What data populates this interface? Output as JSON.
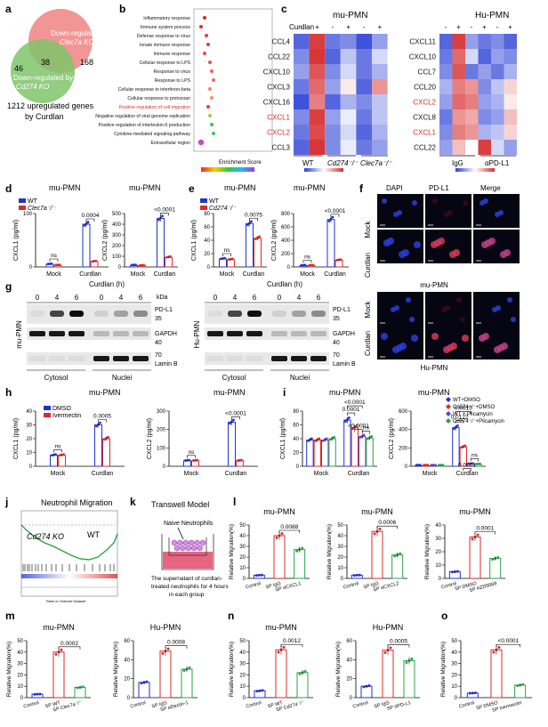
{
  "panels": {
    "a": {
      "letter": "a",
      "down_clec": "Down-regulated by",
      "clec_ko": "Clec7a KO",
      "down_cd": "Down-regulated by",
      "cd_ko": "Cd274 KO",
      "n_left": "46",
      "n_mid": "38",
      "n_right": "168",
      "upreg": "1212 upregulated genes",
      "by": "by Curdlan"
    },
    "b": {
      "letter": "b",
      "terms": [
        "Inflammatory response",
        "Immune system process",
        "Defense response to virus",
        "Innate immune response",
        "Immune response",
        "Cellular response to LPS",
        "Response to virus",
        "Response to LPS",
        "Cellular response to interferon-beta",
        "Cellular response to protozoan",
        "Positive regulation of cell migration",
        "Negative regulation of viral genome replication",
        "Positive regulation of interleukin-6 production",
        "Cytokine-mediated signaling pathway",
        "Extracellular region"
      ],
      "xlabel": "Enrichment Score"
    },
    "c": {
      "letter": "c",
      "mu_title": "mu-PMN",
      "hu_title": "Hu-PMN",
      "curdlan": "Curdlan",
      "signs": [
        "-",
        "+",
        "-",
        "+",
        "-",
        "+"
      ],
      "mu_genes": [
        "CCL4",
        "CCL22",
        "CXCL10",
        "CXCL3",
        "CXCL16",
        "CXCL1",
        "CXCL2",
        "CCL3"
      ],
      "hu_genes": [
        "CXCL11",
        "CXCL10",
        "CCL7",
        "CCL20",
        "CXCL2",
        "CXCL8",
        "CXCL1",
        "CCL22"
      ],
      "mu_groups": [
        "WT",
        "Cd274⁻/⁻",
        "Clec7a⁻/⁻"
      ],
      "hu_groups": [
        "IgG",
        "αPD-L1"
      ]
    },
    "d": {
      "letter": "d",
      "title1": "mu-PMN",
      "title2": "mu-PMN",
      "leg1": "WT",
      "leg2": "Clec7a⁻/⁻",
      "y1": "CXCL1 (pg/ml)",
      "y2": "CXCL2 (pg/ml)",
      "p1": "0.0004",
      "p2": "<0.0001",
      "ns": "ns",
      "mock": "Mock",
      "curd": "Curdlan"
    },
    "e": {
      "letter": "e",
      "title1": "mu-PMN",
      "title2": "mu-PMN",
      "leg1": "WT",
      "leg2": "Cd274⁻/⁻",
      "y1": "CXCL1 (pg/ml)",
      "y2": "CXCL2 (pg/ml)",
      "p1": "0.0075",
      "p2": "<0.0001",
      "ns": "ns",
      "mock": "Mock",
      "curd": "Curdlan"
    },
    "f": {
      "letter": "f",
      "cols": [
        "DAPI",
        "PD-L1",
        "Merge"
      ],
      "rows": [
        "Mock",
        "Curdlan"
      ],
      "mid": "mu-PMN",
      "bottom": "Hu-PMN"
    },
    "g": {
      "letter": "g",
      "curd_h": "Curdlan (h)",
      "times": [
        "0",
        "4",
        "6",
        "0",
        "4",
        "6"
      ],
      "kda": "kDa",
      "pdl1": "PD-L1",
      "gapdh": "GAPDH",
      "laminb": "Lamin B",
      "m35": "35",
      "m40": "40",
      "m70": "70",
      "cyto": "Cytosol",
      "nuc": "Nuclei",
      "mu": "mu-PMN",
      "hu": "Hu-PMN"
    },
    "h": {
      "letter": "h",
      "title1": "mu-PMN",
      "title2": "mu-PMN",
      "leg1": "DMSO",
      "leg2": "Ivermectin",
      "y1": "CXCL1 (pg/ml)",
      "y2": "CXCL2 (pg/ml)",
      "p1": "0.0005",
      "p2": "<0.0001",
      "ns": "ns",
      "mock": "Mock",
      "curd": "Curdlan"
    },
    "i": {
      "letter": "i",
      "title1": "mu-PMN",
      "title2": "mu-PMN",
      "legend": [
        "WT+DMSO",
        "Cd274⁻/⁻+DMSO",
        "WT + Plicamycin",
        "Cd274⁻/⁻+Plicamycin"
      ],
      "y1": "CXCL1 (pg/ml)",
      "y2": "CXCL2 (pg/ml)",
      "p1": [
        "<0.0001",
        "0.0001",
        "<0.0001"
      ],
      "p2": [
        "0.0015",
        "0.0122",
        "0.0001"
      ],
      "ns": "ns",
      "mock": "Mock",
      "curd": "Curdlan"
    },
    "j": {
      "letter": "j",
      "title": "Neutrophil Migration",
      "ko": "Cd274 KO",
      "wt": "WT",
      "xlabel": "Rank in Ordered Dataset"
    },
    "k": {
      "letter": "k",
      "title": "Transwell Model",
      "naive": "Naive Neutrophils",
      "desc1": "The supernatant of curdlan-",
      "desc2": "treated neutrophils for 4 hours",
      "desc3": "in each group"
    },
    "l": {
      "letter": "l",
      "ylabel": "Relative Migration(%)",
      "charts": [
        {
          "title": "mu-PMN",
          "p": "0.0088",
          "labels": [
            "Control",
            "SP IgG",
            "SP αCXCL1"
          ]
        },
        {
          "title": "mu-PMN",
          "p": "0.0006",
          "labels": [
            "Control",
            "SP IgG",
            "SP αCXCL2"
          ]
        },
        {
          "title": "mu-PMN",
          "p": "0.0001",
          "labels": [
            "Control",
            "SP DMSO",
            "SP AZD5069"
          ]
        }
      ]
    },
    "m": {
      "letter": "m",
      "ylabel": "Relative Migration(%)",
      "charts": [
        {
          "title": "mu-PMN",
          "p": "0.0002",
          "labels": [
            "Control",
            "SP WT",
            "SP Clec7a⁻/⁻"
          ]
        },
        {
          "title": "Hu-PMN",
          "p": "0.0008",
          "labels": [
            "Control",
            "SP IgG",
            "SP αDectin-1"
          ]
        }
      ]
    },
    "n": {
      "letter": "n",
      "ylabel": "Relative Migration(%)",
      "charts": [
        {
          "title": "mu-PMN",
          "p": "0.0012",
          "labels": [
            "Control",
            "SP WT",
            "SP Cd274⁻/⁻"
          ]
        },
        {
          "title": "Hu-PMN",
          "p": "0.0005",
          "labels": [
            "Control",
            "SP IgG",
            "SP αPD-L1"
          ]
        }
      ]
    },
    "o": {
      "letter": "o",
      "ylabel": "Relative Migration(%)",
      "charts": [
        {
          "title": "",
          "p": "<0.0001",
          "labels": [
            "Control",
            "SP DMSO",
            "SP Ivermectin"
          ]
        }
      ]
    }
  },
  "colors": {
    "blue": "#2233cc",
    "red": "#d92b2b",
    "green": "#2ea04a",
    "purple": "#6a3fc0",
    "redlight": "#ee9090",
    "venn_red": "#f08a8a",
    "venn_green": "#7fc46a"
  },
  "chart_data": [
    {
      "type": "bar",
      "panel": "d1",
      "categories": [
        "Mock",
        "Curdlan"
      ],
      "series": [
        {
          "name": "WT",
          "values": [
            5,
            80
          ]
        },
        {
          "name": "Clec7a⁻/⁻",
          "values": [
            3,
            10
          ]
        }
      ],
      "ylim": [
        0,
        100
      ]
    },
    {
      "type": "bar",
      "panel": "d2",
      "categories": [
        "Mock",
        "Curdlan"
      ],
      "series": [
        {
          "name": "WT",
          "values": [
            15,
            455
          ]
        },
        {
          "name": "Clec7a⁻/⁻",
          "values": [
            12,
            90
          ]
        }
      ],
      "ylim": [
        0,
        500
      ]
    },
    {
      "type": "bar",
      "panel": "e1",
      "categories": [
        "Mock",
        "Curdlan"
      ],
      "series": [
        {
          "name": "WT",
          "values": [
            12,
            65
          ]
        },
        {
          "name": "Cd274⁻/⁻",
          "values": [
            11,
            43
          ]
        }
      ],
      "ylim": [
        0,
        80
      ]
    },
    {
      "type": "bar",
      "panel": "e2",
      "categories": [
        "Mock",
        "Curdlan"
      ],
      "series": [
        {
          "name": "WT",
          "values": [
            20,
            710
          ]
        },
        {
          "name": "Cd274⁻/⁻",
          "values": [
            20,
            100
          ]
        }
      ],
      "ylim": [
        0,
        800
      ]
    },
    {
      "type": "bar",
      "panel": "h1",
      "categories": [
        "Mock",
        "Curdlan"
      ],
      "series": [
        {
          "name": "DMSO",
          "values": [
            8,
            30
          ]
        },
        {
          "name": "Ivermectin",
          "values": [
            8,
            20
          ]
        }
      ],
      "ylim": [
        0,
        40
      ]
    },
    {
      "type": "bar",
      "panel": "h2",
      "categories": [
        "Mock",
        "Curdlan"
      ],
      "series": [
        {
          "name": "DMSO",
          "values": [
            30,
            240
          ]
        },
        {
          "name": "Ivermectin",
          "values": [
            30,
            30
          ]
        }
      ],
      "ylim": [
        0,
        300
      ]
    },
    {
      "type": "bar",
      "panel": "i1",
      "categories": [
        "Mock",
        "Curdlan"
      ],
      "series": [
        {
          "name": "WT+DMSO",
          "values": [
            38,
            67
          ]
        },
        {
          "name": "Cd274⁻/⁻+DMSO",
          "values": [
            38,
            56
          ]
        },
        {
          "name": "WT + Plicamycin",
          "values": [
            38,
            43
          ]
        },
        {
          "name": "Cd274⁻/⁻+Plicamycin",
          "values": [
            40,
            41
          ]
        }
      ],
      "ylim": [
        0,
        80
      ]
    },
    {
      "type": "bar",
      "panel": "i2",
      "categories": [
        "Mock",
        "Curdlan"
      ],
      "series": [
        {
          "name": "WT+DMSO",
          "values": [
            8,
            420
          ]
        },
        {
          "name": "Cd274⁻/⁻+DMSO",
          "values": [
            8,
            210
          ]
        },
        {
          "name": "WT + Plicamycin",
          "values": [
            8,
            25
          ]
        },
        {
          "name": "Cd274⁻/⁻+Plicamycin",
          "values": [
            8,
            20
          ]
        }
      ],
      "ylim": [
        0,
        600
      ]
    },
    {
      "type": "bar",
      "panel": "l1",
      "categories": [
        "Control",
        "SP IgG",
        "SP αCXCL1"
      ],
      "values": [
        3,
        40,
        27
      ],
      "ylim": [
        0,
        50
      ]
    },
    {
      "type": "bar",
      "panel": "l2",
      "categories": [
        "Control",
        "SP IgG",
        "SP αCXCL2"
      ],
      "values": [
        3,
        44,
        22
      ],
      "ylim": [
        0,
        50
      ]
    },
    {
      "type": "bar",
      "panel": "l3",
      "categories": [
        "Control",
        "SP DMSO",
        "SP AZD5069"
      ],
      "values": [
        5,
        31,
        15
      ],
      "ylim": [
        0,
        40
      ]
    },
    {
      "type": "bar",
      "panel": "m1",
      "categories": [
        "Control",
        "SP WT",
        "SP Clec7a⁻/⁻"
      ],
      "values": [
        3,
        40,
        9
      ],
      "ylim": [
        0,
        50
      ]
    },
    {
      "type": "bar",
      "panel": "m2",
      "categories": [
        "Control",
        "SP IgG",
        "SP αDectin-1"
      ],
      "values": [
        16,
        49,
        30
      ],
      "ylim": [
        0,
        60
      ]
    },
    {
      "type": "bar",
      "panel": "n1",
      "categories": [
        "Control",
        "SP WT",
        "SP Cd274⁻/⁻"
      ],
      "values": [
        6,
        42,
        22
      ],
      "ylim": [
        0,
        50
      ]
    },
    {
      "type": "bar",
      "panel": "n2",
      "categories": [
        "Control",
        "SP IgG",
        "SP αPD-L1"
      ],
      "values": [
        12,
        50,
        39
      ],
      "ylim": [
        0,
        60
      ]
    },
    {
      "type": "bar",
      "panel": "o1",
      "categories": [
        "Control",
        "SP DMSO",
        "SP Ivermectin"
      ],
      "values": [
        4,
        42,
        11
      ],
      "ylim": [
        0,
        50
      ]
    }
  ]
}
